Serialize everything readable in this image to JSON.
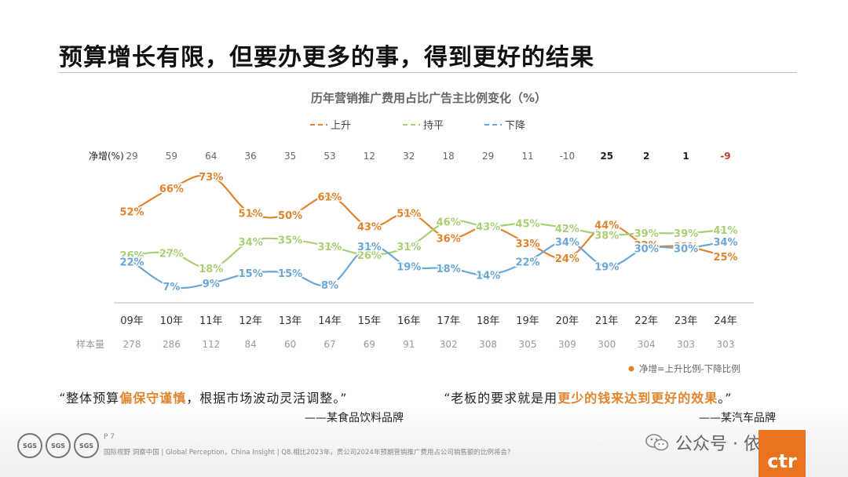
{
  "slide_title": "预算增长有限，但要办更多的事，得到更好的结果",
  "chart_data": {
    "type": "line",
    "title": "历年营销推广费用占比广告主比例变化（%）",
    "categories": [
      "09年",
      "10年",
      "11年",
      "12年",
      "13年",
      "14年",
      "15年",
      "16年",
      "17年",
      "18年",
      "19年",
      "20年",
      "21年",
      "22年",
      "23年",
      "24年"
    ],
    "series": [
      {
        "name": "上升",
        "color": "#e0842e",
        "values": [
          52,
          66,
          73,
          51,
          50,
          61,
          43,
          51,
          36,
          43,
          33,
          24,
          44,
          32,
          31,
          25
        ]
      },
      {
        "name": "持平",
        "color": "#a9cf74",
        "values": [
          26,
          27,
          18,
          34,
          35,
          31,
          26,
          31,
          46,
          43,
          45,
          42,
          38,
          39,
          39,
          41
        ]
      },
      {
        "name": "下降",
        "color": "#6aa6d6",
        "values": [
          22,
          7,
          9,
          15,
          15,
          8,
          31,
          19,
          18,
          14,
          22,
          34,
          19,
          30,
          30,
          34
        ]
      }
    ],
    "data_labels": {
      "上升": [
        "52%",
        "66%",
        "73%",
        "51%",
        "50%",
        "61%",
        "43%",
        "51%",
        "36%",
        "43%",
        "33%",
        "24%",
        "44%",
        "32%",
        "31%",
        "25%"
      ],
      "持平": [
        "26%",
        "27%",
        "18%",
        "34%",
        "35%",
        "31%",
        "26%",
        "31%",
        "46%",
        "43%",
        "45%",
        "42%",
        "38%",
        "39%",
        "39%",
        "41%"
      ],
      "下降": [
        "22%",
        "7%",
        "9%",
        "15%",
        "15%",
        "8%",
        "31%",
        "19%",
        "18%",
        "14%",
        "22%",
        "34%",
        "19%",
        "30%",
        "30%",
        "34%"
      ]
    },
    "net_label": "净增(%)",
    "net_values": [
      "29",
      "59",
      "64",
      "36",
      "35",
      "53",
      "12",
      "32",
      "18",
      "29",
      "11",
      "-10",
      "25",
      "2",
      "1",
      "-9"
    ],
    "net_bold_from_index": 12,
    "sample_label": "样本量",
    "sample_sizes": [
      "278",
      "286",
      "112",
      "84",
      "60",
      "67",
      "69",
      "91",
      "302",
      "308",
      "305",
      "309",
      "300",
      "304",
      "303",
      "303"
    ],
    "note": "净增=上升比例-下降比例",
    "note_color": "#e0842e",
    "ylim": [
      0,
      80
    ],
    "grid": false,
    "legend_position": "top"
  },
  "quotes": [
    {
      "prefix": "“整体预算",
      "highlight": "偏保守谨慎",
      "suffix": "，根据市场波动灵活调整。”",
      "attribution": "——某食品饮料品牌"
    },
    {
      "prefix": "“老板的要求就是用",
      "highlight": "更少的钱来达到更好的效果",
      "suffix": "。”",
      "attribution": "——某汽车品牌"
    }
  ],
  "footer": {
    "page": "P 7",
    "source": "国际视野  洞察中国 |  Global Perception，China Insight | Q8.相比2023年，贵公司2024年预期营销推广费用占公司销售额的比例将会?",
    "logo_labels": [
      "SGS",
      "SGS",
      "SGS"
    ],
    "wechat_label": "公众号 · 依说",
    "brand": "ctr"
  }
}
